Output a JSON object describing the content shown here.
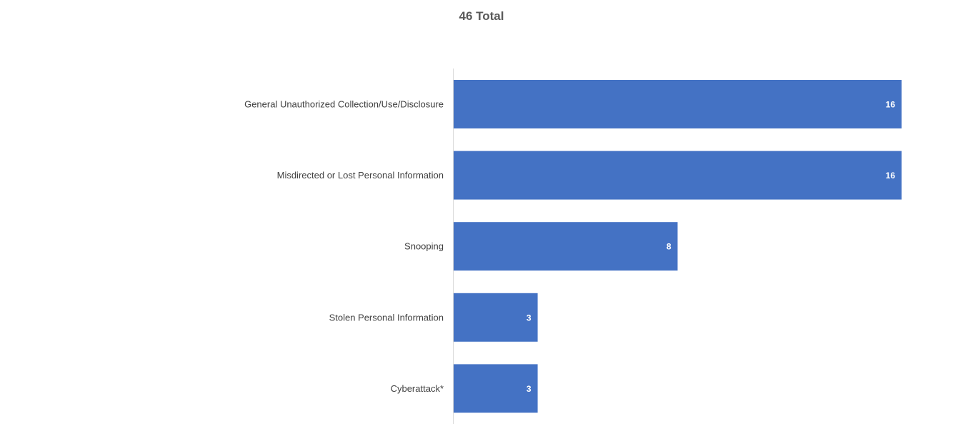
{
  "chart_data": {
    "type": "bar",
    "orientation": "horizontal",
    "title": "46 Total",
    "categories": [
      "General Unauthorized Collection/Use/Disclosure",
      "Misdirected or Lost Personal Information",
      "Snooping",
      "Stolen Personal Information",
      "Cyberattack*"
    ],
    "values": [
      16,
      16,
      8,
      3,
      3
    ],
    "data_labels": [
      "16",
      "16",
      "8",
      "3",
      "3"
    ],
    "xlim": [
      0,
      16
    ],
    "bar_color": "#4472C4",
    "axis_color": "#D9D9D9",
    "grid": false,
    "legend": "none",
    "data_labels_position": "inside-end"
  }
}
